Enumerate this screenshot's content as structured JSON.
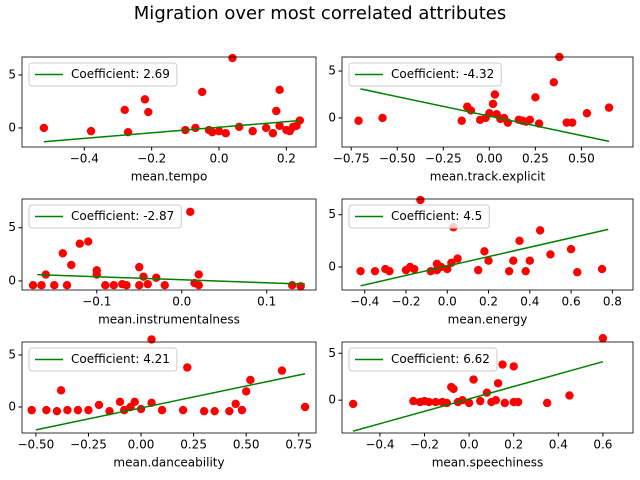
{
  "title": "Migration over most correlated attributes",
  "chart_data": [
    {
      "type": "scatter",
      "xlabel": "mean.tempo",
      "color": "red",
      "legend": "upper left",
      "x": [
        -0.52,
        -0.38,
        -0.28,
        -0.27,
        -0.22,
        -0.21,
        -0.1,
        -0.07,
        -0.05,
        -0.03,
        -0.02,
        0,
        0.02,
        0.04,
        0.06,
        0.1,
        0.14,
        0.16,
        0.17,
        0.18,
        0.18,
        0.2,
        0.21,
        0.22,
        0.23,
        0.24
      ],
      "values": [
        0,
        -0.3,
        1.7,
        -0.4,
        2.7,
        1.5,
        -0.2,
        0,
        3.4,
        -0.2,
        -0.4,
        -0.3,
        -0.5,
        6.6,
        0.1,
        -0.3,
        0,
        -0.5,
        1.6,
        0.2,
        3.6,
        -0.2,
        -0.3,
        0.1,
        0.2,
        0.7
      ],
      "line": {
        "name": "Coefficient: 2.69",
        "color": "green",
        "x": [
          -0.52,
          0.24
        ],
        "values": [
          -1.3,
          0.7
        ]
      },
      "xlim": [
        -0.585,
        0.288
      ],
      "ylim": [
        -1.8,
        6.7
      ],
      "xticks": [
        {
          "value": -0.4,
          "label": "−0.4"
        },
        {
          "value": -0.2,
          "label": "−0.2"
        },
        {
          "value": 0,
          "label": "0.0"
        },
        0.2
      ],
      "yticks": [
        0,
        5
      ]
    },
    {
      "type": "scatter",
      "xlabel": "mean.track.explicit",
      "color": "red",
      "legend": "upper left",
      "x": [
        -0.71,
        -0.58,
        -0.15,
        -0.12,
        -0.1,
        -0.05,
        -0.02,
        0,
        0.02,
        0.03,
        0.04,
        0.06,
        0.08,
        0.1,
        0.16,
        0.18,
        0.2,
        0.22,
        0.25,
        0.27,
        0.35,
        0.38,
        0.42,
        0.45,
        0.53,
        0.65
      ],
      "values": [
        -0.3,
        0,
        -0.3,
        1.2,
        0.8,
        -0.2,
        0,
        0.5,
        1.5,
        2.5,
        0.4,
        -0.1,
        0,
        -0.5,
        -0.2,
        -0.3,
        -0.4,
        -0.2,
        2.2,
        -0.6,
        3.8,
        6.5,
        -0.5,
        -0.5,
        0.5,
        1.1
      ],
      "line": {
        "name": "Coefficient: -4.32",
        "color": "green",
        "x": [
          -0.7,
          0.65
        ],
        "values": [
          3.1,
          -2.5
        ]
      },
      "xlim": [
        -0.8,
        0.78
      ],
      "ylim": [
        -3.1,
        6.5
      ],
      "xticks": [
        {
          "value": -0.75,
          "label": "−0.75"
        },
        {
          "value": -0.5,
          "label": "−0.50"
        },
        {
          "value": -0.25,
          "label": "−0.25"
        },
        {
          "value": 0,
          "label": "0.00"
        },
        {
          "value": 0.25,
          "label": "0.25"
        },
        {
          "value": 0.5,
          "label": "0.50"
        }
      ],
      "yticks": [
        0,
        5
      ]
    },
    {
      "type": "scatter",
      "xlabel": "mean.instrumentalness",
      "color": "red",
      "legend": "upper left",
      "x": [
        -0.175,
        -0.165,
        -0.16,
        -0.15,
        -0.14,
        -0.135,
        -0.13,
        -0.12,
        -0.11,
        -0.1,
        -0.1,
        -0.09,
        -0.08,
        -0.07,
        -0.065,
        -0.05,
        -0.05,
        -0.045,
        -0.04,
        -0.03,
        -0.02,
        0.01,
        0.015,
        0.02,
        0.02,
        0.13,
        0.14
      ],
      "values": [
        -0.4,
        -0.4,
        0.6,
        -0.4,
        2.6,
        -0.4,
        1.5,
        3.5,
        3.7,
        0.6,
        1,
        -0.4,
        -0.4,
        -0.3,
        -0.4,
        -0.4,
        1.3,
        0.4,
        -0.3,
        0.3,
        -0.4,
        6.5,
        -0.2,
        0.6,
        -0.4,
        -0.4,
        -0.5
      ],
      "line": {
        "name": "Coefficient: -2.87",
        "color": "green",
        "x": [
          -0.17,
          0.145
        ],
        "values": [
          0.6,
          -0.3
        ]
      },
      "xlim": [
        -0.188,
        0.158
      ],
      "ylim": [
        -0.85,
        7.7
      ],
      "xticks": [
        {
          "value": -0.1,
          "label": "−0.1"
        },
        {
          "value": 0,
          "label": "0.0"
        },
        0.1
      ],
      "yticks": [
        0,
        5
      ]
    },
    {
      "type": "scatter",
      "xlabel": "mean.energy",
      "color": "red",
      "legend": "upper left",
      "x": [
        -0.42,
        -0.35,
        -0.3,
        -0.28,
        -0.2,
        -0.18,
        -0.16,
        -0.13,
        -0.08,
        -0.05,
        -0.05,
        -0.03,
        0,
        0.02,
        0.03,
        0.05,
        0.15,
        0.18,
        0.2,
        0.3,
        0.32,
        0.35,
        0.38,
        0.4,
        0.45,
        0.5,
        0.6,
        0.63,
        0.75
      ],
      "values": [
        -0.4,
        -0.4,
        -0.2,
        -0.4,
        -0.3,
        0,
        -0.2,
        6.4,
        -0.4,
        -0.3,
        0.3,
        0,
        -0.2,
        0.4,
        3.8,
        0.8,
        -0.3,
        1.5,
        0.6,
        -0.4,
        0.6,
        2.5,
        -0.4,
        0.6,
        3.5,
        1.2,
        1.7,
        -0.5,
        -0.2
      ],
      "line": {
        "name": "Coefficient: 4.5",
        "color": "green",
        "x": [
          -0.42,
          0.78
        ],
        "values": [
          -1.8,
          3.6
        ]
      },
      "xlim": [
        -0.51,
        0.9
      ],
      "ylim": [
        -2.2,
        6.5
      ],
      "xticks": [
        {
          "value": -0.4,
          "label": "−0.4"
        },
        {
          "value": -0.2,
          "label": "−0.2"
        },
        {
          "value": 0,
          "label": "0.0"
        },
        0.2,
        0.4,
        0.6,
        0.8
      ],
      "yticks": [
        0,
        5
      ]
    },
    {
      "type": "scatter",
      "xlabel": "mean.danceability",
      "color": "red",
      "legend": "upper left",
      "x": [
        -0.52,
        -0.45,
        -0.4,
        -0.38,
        -0.35,
        -0.3,
        -0.25,
        -0.2,
        -0.15,
        -0.1,
        -0.08,
        -0.05,
        -0.03,
        0,
        0.05,
        0.05,
        0.1,
        0.2,
        0.22,
        0.3,
        0.35,
        0.42,
        0.45,
        0.48,
        0.5,
        0.52,
        0.67,
        0.78
      ],
      "values": [
        -0.3,
        -0.3,
        -0.4,
        1.6,
        -0.3,
        -0.3,
        -0.3,
        0.2,
        -0.4,
        0.5,
        -0.3,
        0,
        0.5,
        -0.2,
        6.5,
        0.4,
        -0.3,
        -0.3,
        3.8,
        -0.4,
        -0.4,
        -0.4,
        0.3,
        -0.3,
        1.5,
        2.6,
        3.5,
        0
      ],
      "line": {
        "name": "Coefficient: 4.21",
        "color": "green",
        "x": [
          -0.5,
          0.78
        ],
        "values": [
          -2.2,
          3.2
        ]
      },
      "xlim": [
        -0.566,
        0.832
      ],
      "ylim": [
        -2.5,
        6.25
      ],
      "xticks": [
        {
          "value": -0.5,
          "label": "−0.50"
        },
        {
          "value": -0.25,
          "label": "−0.25"
        },
        {
          "value": 0,
          "label": "0.00"
        },
        {
          "value": 0.25,
          "label": "0.25"
        },
        {
          "value": 0.5,
          "label": "0.50"
        },
        0.75
      ],
      "yticks": [
        0,
        5
      ]
    },
    {
      "type": "scatter",
      "xlabel": "mean.speechiness",
      "color": "red",
      "legend": "upper left",
      "x": [
        -0.52,
        -0.25,
        -0.22,
        -0.2,
        -0.18,
        -0.15,
        -0.12,
        -0.1,
        -0.08,
        -0.07,
        -0.05,
        -0.03,
        0,
        0.02,
        0.05,
        0.08,
        0.1,
        0.12,
        0.13,
        0.15,
        0.16,
        0.2,
        0.2,
        0.22,
        0.35,
        0.45,
        0.6
      ],
      "values": [
        -0.4,
        -0.1,
        -0.2,
        -0.1,
        -0.2,
        -0.2,
        -0.2,
        -0.3,
        1.4,
        1.2,
        -0.2,
        0,
        -0.3,
        2.2,
        -0.1,
        0.8,
        -0.2,
        0,
        1.8,
        3.8,
        -0.3,
        -0.2,
        3.6,
        -0.2,
        -0.3,
        0.5,
        6.6
      ],
      "line": {
        "name": "Coefficient: 6.62",
        "color": "green",
        "x": [
          -0.52,
          0.6
        ],
        "values": [
          -3.3,
          4.1
        ]
      },
      "xlim": [
        -0.57,
        0.735
      ],
      "ylim": [
        -3.5,
        6.2
      ],
      "xticks": [
        {
          "value": -0.4,
          "label": "−0.4"
        },
        {
          "value": -0.2,
          "label": "−0.2"
        },
        {
          "value": 0,
          "label": "0.0"
        },
        0.2,
        0.4,
        0.6
      ],
      "yticks": [
        0,
        5
      ]
    }
  ]
}
